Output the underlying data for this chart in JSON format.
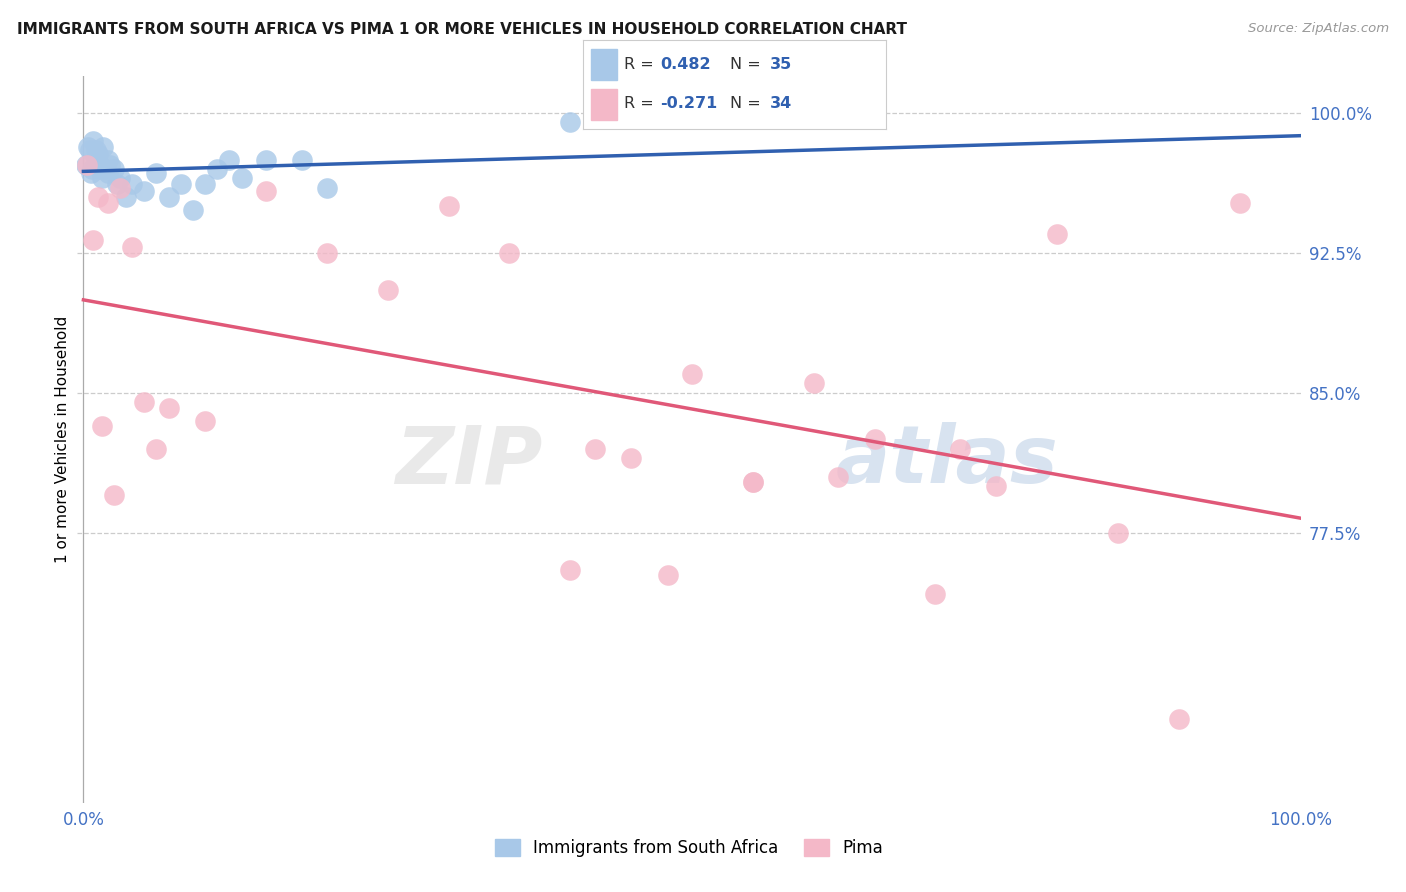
{
  "title": "IMMIGRANTS FROM SOUTH AFRICA VS PIMA 1 OR MORE VEHICLES IN HOUSEHOLD CORRELATION CHART",
  "source": "Source: ZipAtlas.com",
  "ylabel": "1 or more Vehicles in Household",
  "y_ticks": [
    100.0,
    92.5,
    85.0,
    77.5
  ],
  "y_tick_labels": [
    "100.0%",
    "92.5%",
    "85.0%",
    "77.5%"
  ],
  "legend1_label": "Immigrants from South Africa",
  "legend2_label": "Pima",
  "r1": 0.482,
  "n1": 35,
  "r2": -0.271,
  "n2": 34,
  "color_blue": "#a8c8e8",
  "color_pink": "#f4b8c8",
  "line_blue": "#3060b0",
  "line_pink": "#e05878",
  "blue_x": [
    0.2,
    0.4,
    0.6,
    0.8,
    1.0,
    1.0,
    1.2,
    1.4,
    1.5,
    1.6,
    1.8,
    2.0,
    2.0,
    2.2,
    2.5,
    2.8,
    3.0,
    3.5,
    4.0,
    5.0,
    6.0,
    7.0,
    8.0,
    9.0,
    10.0,
    11.0,
    12.0,
    13.0,
    15.0,
    18.0,
    20.0,
    0.5,
    0.7,
    1.3,
    40.0
  ],
  "blue_y": [
    97.2,
    98.2,
    96.8,
    98.5,
    97.5,
    98.0,
    97.8,
    97.0,
    96.5,
    98.2,
    97.0,
    97.5,
    96.8,
    97.2,
    97.0,
    96.2,
    96.5,
    95.5,
    96.2,
    95.8,
    96.8,
    95.5,
    96.2,
    94.8,
    96.2,
    97.0,
    97.5,
    96.5,
    97.5,
    97.5,
    96.0,
    98.0,
    97.0,
    97.2,
    99.5
  ],
  "pink_x": [
    0.3,
    0.8,
    1.2,
    2.0,
    3.0,
    4.0,
    5.0,
    7.0,
    10.0,
    15.0,
    20.0,
    25.0,
    30.0,
    35.0,
    40.0,
    45.0,
    50.0,
    55.0,
    60.0,
    65.0,
    70.0,
    75.0,
    80.0,
    85.0,
    90.0,
    95.0,
    1.5,
    2.5,
    6.0,
    42.0,
    48.0,
    55.0,
    62.0,
    72.0
  ],
  "pink_y": [
    97.2,
    93.2,
    95.5,
    95.2,
    96.0,
    92.8,
    84.5,
    84.2,
    83.5,
    95.8,
    92.5,
    90.5,
    95.0,
    92.5,
    75.5,
    81.5,
    86.0,
    80.2,
    85.5,
    82.5,
    74.2,
    80.0,
    93.5,
    77.5,
    67.5,
    95.2,
    83.2,
    79.5,
    82.0,
    82.0,
    75.2,
    80.2,
    80.5,
    82.0
  ],
  "ylim_min": 63,
  "ylim_max": 102,
  "xlim_min": -0.5,
  "xlim_max": 100
}
